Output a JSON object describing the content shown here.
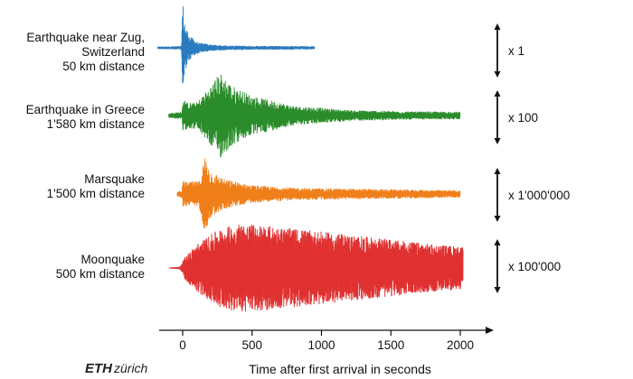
{
  "chart_data": {
    "type": "line",
    "title": "",
    "xlabel": "Time after first arrival in seconds",
    "ylabel": "",
    "xlim": [
      -130,
      2030
    ],
    "xticks": [
      0,
      500,
      1000,
      1500,
      2000
    ],
    "grid": false,
    "legend": "none",
    "series": [
      {
        "label_lines": [
          "Earthquake near Zug,",
          "Switzerland",
          "50 km distance"
        ],
        "scale": "x 1",
        "color": "#2a7bbf",
        "x_start": -180,
        "x_end": 950,
        "envelope": [
          [
            -180,
            0.02
          ],
          [
            -10,
            0.03
          ],
          [
            0,
            1.0
          ],
          [
            20,
            0.45
          ],
          [
            60,
            0.22
          ],
          [
            120,
            0.1
          ],
          [
            250,
            0.05
          ],
          [
            500,
            0.035
          ],
          [
            950,
            0.03
          ]
        ]
      },
      {
        "label_lines": [
          "Earthquake in Greece",
          "1'580 km distance"
        ],
        "scale": "x 100",
        "color": "#2a8c2a",
        "x_start": -100,
        "x_end": 2000,
        "envelope": [
          [
            -100,
            0.05
          ],
          [
            -5,
            0.08
          ],
          [
            0,
            0.4
          ],
          [
            30,
            0.3
          ],
          [
            100,
            0.3
          ],
          [
            180,
            0.6
          ],
          [
            270,
            1.0
          ],
          [
            350,
            0.7
          ],
          [
            500,
            0.45
          ],
          [
            800,
            0.22
          ],
          [
            1200,
            0.12
          ],
          [
            1600,
            0.09
          ],
          [
            2000,
            0.08
          ]
        ]
      },
      {
        "label_lines": [
          "Marsquake",
          "1'500 km distance"
        ],
        "scale": "x 1'000'000",
        "color": "#f07f1a",
        "x_start": -40,
        "x_end": 2000,
        "envelope": [
          [
            -40,
            0.05
          ],
          [
            -5,
            0.08
          ],
          [
            0,
            0.3
          ],
          [
            40,
            0.28
          ],
          [
            120,
            0.3
          ],
          [
            160,
            0.9
          ],
          [
            200,
            0.55
          ],
          [
            300,
            0.35
          ],
          [
            500,
            0.2
          ],
          [
            800,
            0.14
          ],
          [
            1200,
            0.12
          ],
          [
            1600,
            0.1
          ],
          [
            2000,
            0.08
          ]
        ]
      },
      {
        "label_lines": [
          "Moonquake",
          "500 km distance"
        ],
        "scale": "x 100'000",
        "color": "#e03030",
        "x_start": -100,
        "x_end": 2020,
        "envelope": [
          [
            -100,
            0.0
          ],
          [
            -20,
            0.02
          ],
          [
            20,
            0.25
          ],
          [
            100,
            0.5
          ],
          [
            250,
            0.8
          ],
          [
            400,
            0.95
          ],
          [
            600,
            0.9
          ],
          [
            900,
            0.8
          ],
          [
            1200,
            0.7
          ],
          [
            1500,
            0.6
          ],
          [
            1800,
            0.5
          ],
          [
            2020,
            0.45
          ]
        ]
      }
    ]
  },
  "logo": {
    "name": "ETH zürich logo",
    "text_bold": "ETH",
    "text_italic": "zürich"
  }
}
